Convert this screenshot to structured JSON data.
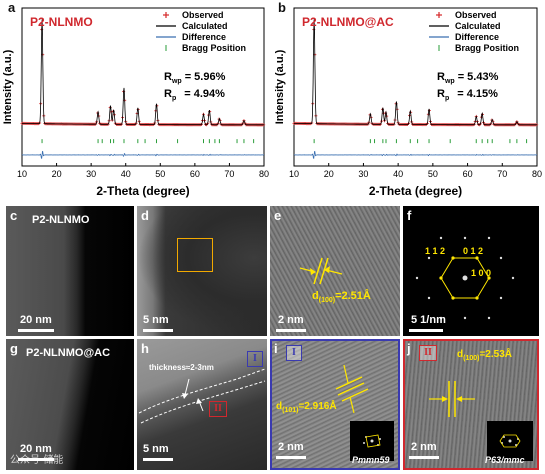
{
  "panels_top": [
    {
      "letter": "a",
      "title": "P2-NLNMO",
      "legend": [
        "Observed",
        "Calculated",
        "Difference",
        "Bragg Position"
      ],
      "rwp_label": "R",
      "rwp_sub": "wp",
      "rwp_value": "= 5.96%",
      "rp_label": "R",
      "rp_sub": "p",
      "rp_value": "= 4.94%"
    },
    {
      "letter": "b",
      "title": "P2-NLNMO@AC",
      "legend": [
        "Observed",
        "Calculated",
        "Difference",
        "Bragg Position"
      ],
      "rwp_label": "R",
      "rwp_sub": "wp",
      "rwp_value": "= 5.43%",
      "rp_label": "R",
      "rp_sub": "p",
      "rp_value": "= 4.15%"
    }
  ],
  "chart_data": [
    {
      "type": "line",
      "title": "P2-NLNMO",
      "xlabel": "2-Theta (degree)",
      "ylabel": "Intensity (a.u.)",
      "xlim": [
        10,
        80
      ],
      "xticks": [
        "10",
        "20",
        "30",
        "40",
        "50",
        "60",
        "70",
        "80"
      ],
      "grid": false,
      "legend_position": "top-right",
      "series": [
        {
          "name": "Observed",
          "color": "#d62728"
        },
        {
          "name": "Calculated",
          "color": "#000000"
        },
        {
          "name": "Difference",
          "color": "#3a6fb0"
        },
        {
          "name": "Bragg Position",
          "color": "#2a9d3a"
        }
      ],
      "peaks": [
        {
          "x": 15.8,
          "intensity": 1.0
        },
        {
          "x": 32.0,
          "intensity": 0.12
        },
        {
          "x": 35.6,
          "intensity": 0.18
        },
        {
          "x": 36.5,
          "intensity": 0.14
        },
        {
          "x": 39.5,
          "intensity": 0.35
        },
        {
          "x": 43.5,
          "intensity": 0.16
        },
        {
          "x": 48.9,
          "intensity": 0.2
        },
        {
          "x": 62.5,
          "intensity": 0.1
        },
        {
          "x": 64.2,
          "intensity": 0.14
        },
        {
          "x": 67.1,
          "intensity": 0.06
        },
        {
          "x": 74.2,
          "intensity": 0.04
        }
      ],
      "bragg_positions": [
        15.8,
        32.0,
        33.2,
        35.6,
        36.5,
        39.5,
        43.5,
        45.6,
        48.9,
        55.0,
        62.5,
        64.2,
        65.8,
        67.1,
        72.2,
        74.2,
        77.0
      ]
    },
    {
      "type": "line",
      "title": "P2-NLNMO@AC",
      "xlabel": "2-Theta (degree)",
      "ylabel": "Intensity (a.u.)",
      "xlim": [
        10,
        80
      ],
      "xticks": [
        "10",
        "20",
        "30",
        "40",
        "50",
        "60",
        "70",
        "80"
      ],
      "grid": false,
      "legend_position": "top-right",
      "series": [
        {
          "name": "Observed",
          "color": "#d62728"
        },
        {
          "name": "Calculated",
          "color": "#000000"
        },
        {
          "name": "Difference",
          "color": "#3a6fb0"
        },
        {
          "name": "Bragg Position",
          "color": "#2a9d3a"
        }
      ],
      "peaks": [
        {
          "x": 15.8,
          "intensity": 1.0
        },
        {
          "x": 32.0,
          "intensity": 0.1
        },
        {
          "x": 35.6,
          "intensity": 0.16
        },
        {
          "x": 36.5,
          "intensity": 0.12
        },
        {
          "x": 39.5,
          "intensity": 0.22
        },
        {
          "x": 43.5,
          "intensity": 0.13
        },
        {
          "x": 48.9,
          "intensity": 0.15
        },
        {
          "x": 62.5,
          "intensity": 0.08
        },
        {
          "x": 64.2,
          "intensity": 0.11
        },
        {
          "x": 67.1,
          "intensity": 0.05
        },
        {
          "x": 74.2,
          "intensity": 0.03
        }
      ],
      "bragg_positions": [
        15.8,
        32.0,
        33.2,
        35.6,
        36.5,
        39.5,
        43.5,
        45.6,
        48.9,
        55.0,
        62.5,
        64.2,
        65.8,
        67.1,
        72.2,
        74.2,
        77.0
      ]
    }
  ],
  "tem": {
    "c": {
      "letter": "c",
      "title": "P2-NLNMO",
      "scale": "20 nm"
    },
    "d": {
      "letter": "d",
      "scale": "5 nm"
    },
    "e": {
      "letter": "e",
      "d_label": "d",
      "d_sub": "(100)",
      "d_value": "=2.51Å",
      "scale": "2 nm"
    },
    "f": {
      "letter": "f",
      "index_a": "1 1 2",
      "index_b": "0 1 2",
      "index_c": "1 0 0",
      "scale": "5  1/nm"
    },
    "g": {
      "letter": "g",
      "title": "P2-NLNMO@AC",
      "scale": "20 nm"
    },
    "h": {
      "letter": "h",
      "thickness": "thickness≈2-3nm",
      "region1": "I",
      "region2": "II",
      "scale": "5 nm"
    },
    "i": {
      "letter": "i",
      "region": "I",
      "d_label": "d",
      "d_sub": "(101)",
      "d_value": "=2.916Å",
      "scale": "2 nm",
      "space_group": "Pmmn59"
    },
    "j": {
      "letter": "j",
      "region": "II",
      "d_label": "d",
      "d_sub": "(100)",
      "d_value": "=2.53Å",
      "scale": "2 nm",
      "space_group": "P63/mmc"
    }
  },
  "watermark": "公众号·储能"
}
